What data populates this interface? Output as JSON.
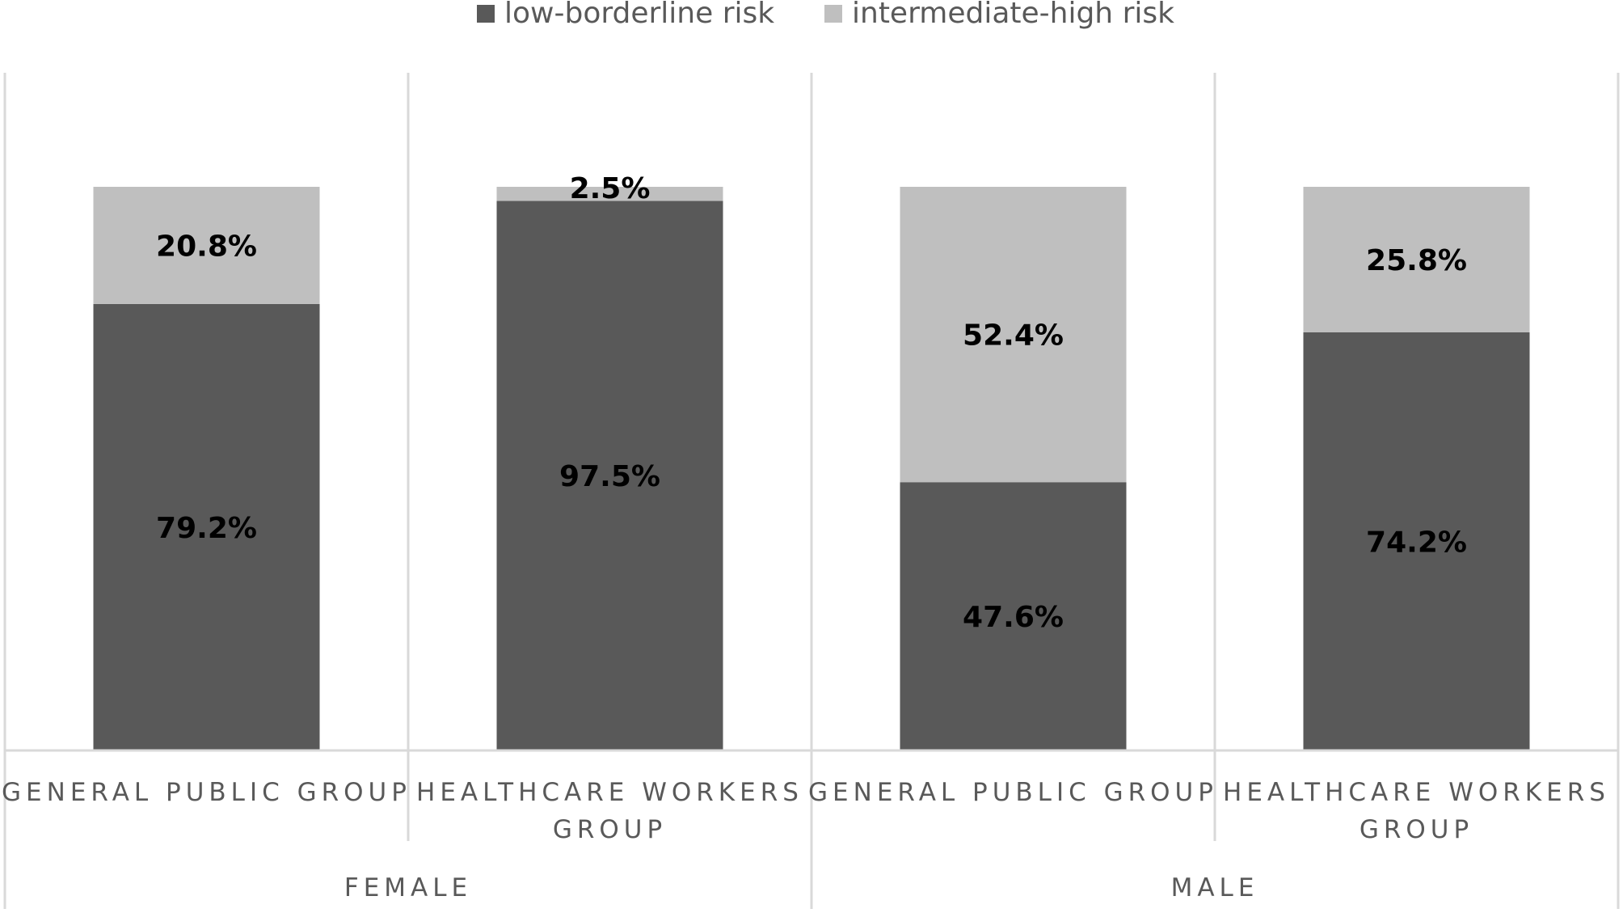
{
  "chart_data": {
    "type": "bar",
    "stacked": true,
    "categories": [
      {
        "group": "FEMALE",
        "label_lines": [
          "GENERAL PUBLIC GROUP"
        ]
      },
      {
        "group": "FEMALE",
        "label_lines": [
          "HEALTHCARE WORKERS",
          "GROUP"
        ]
      },
      {
        "group": "MALE",
        "label_lines": [
          "GENERAL PUBLIC GROUP"
        ]
      },
      {
        "group": "MALE",
        "label_lines": [
          "HEALTHCARE WORKERS",
          "GROUP"
        ]
      }
    ],
    "groups": [
      "FEMALE",
      "MALE"
    ],
    "series": [
      {
        "name": "low-borderline risk",
        "color": "#595959",
        "values": [
          79.2,
          97.5,
          47.6,
          74.2
        ],
        "labels": [
          "79.2%",
          "97.5%",
          "47.6%",
          "74.2%"
        ]
      },
      {
        "name": "intermediate-high risk",
        "color": "#bfbfbf",
        "values": [
          20.8,
          2.5,
          52.4,
          25.8
        ],
        "labels": [
          "20.8%",
          "2.5%",
          "52.4%",
          "25.8%"
        ]
      }
    ],
    "ylim": [
      0,
      100
    ],
    "legend_position": "top",
    "gridlines": "vertical category separators"
  }
}
